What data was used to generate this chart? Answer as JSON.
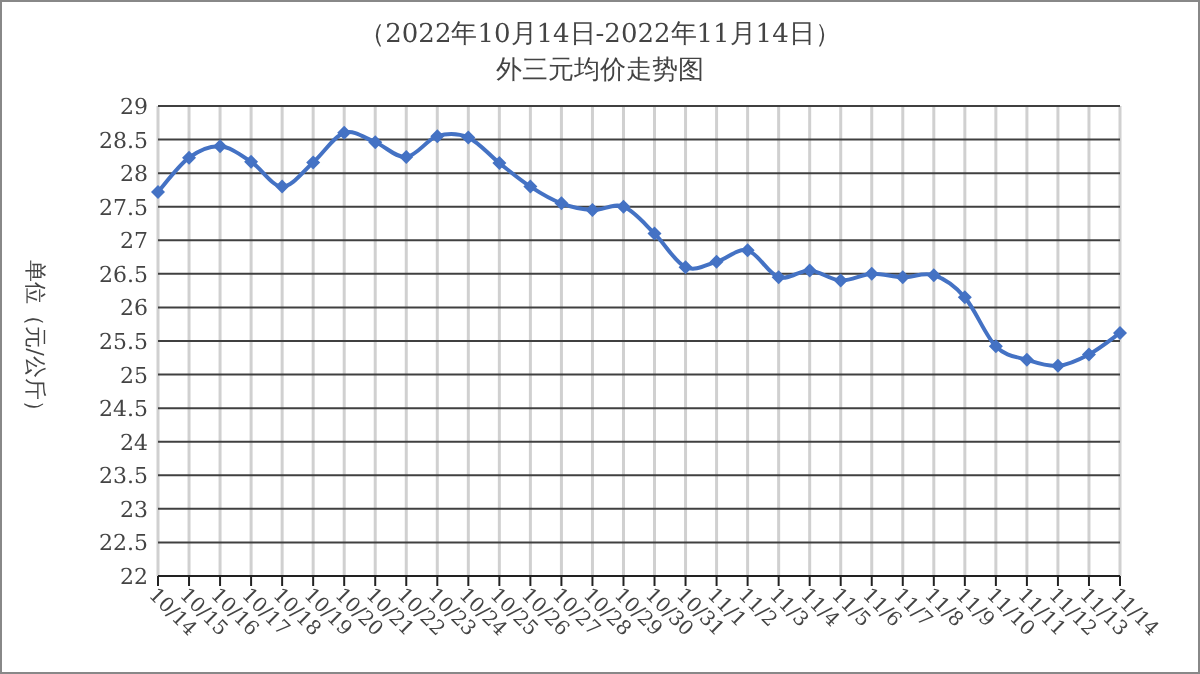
{
  "chart_data": {
    "type": "line",
    "title": "（2022年10月14日-2022年11月14日）",
    "subtitle": "外三元均价走势图",
    "ylabel": "单位（元/公斤）",
    "categories": [
      "10/14",
      "10/15",
      "10/16",
      "10/17",
      "10/18",
      "10/19",
      "10/20",
      "10/21",
      "10/22",
      "10/23",
      "10/24",
      "10/25",
      "10/26",
      "10/27",
      "10/28",
      "10/29",
      "10/30",
      "10/31",
      "11/1",
      "11/2",
      "11/3",
      "11/4",
      "11/5",
      "11/6",
      "11/7",
      "11/8",
      "11/9",
      "11/10",
      "11/11",
      "11/12",
      "11/13",
      "11/14"
    ],
    "series": [
      {
        "color": "#4472c4",
        "values": [
          27.72,
          28.23,
          28.4,
          28.17,
          27.8,
          28.16,
          28.6,
          28.46,
          28.24,
          28.55,
          28.53,
          28.15,
          27.8,
          27.55,
          27.45,
          27.5,
          27.1,
          26.6,
          26.68,
          26.85,
          26.45,
          26.55,
          26.4,
          26.5,
          26.45,
          26.48,
          26.15,
          25.42,
          25.22,
          25.13,
          25.3,
          25.62
        ]
      }
    ],
    "ylim": [
      22,
      29
    ],
    "yticks": [
      22,
      22.5,
      23,
      23.5,
      24,
      24.5,
      25,
      25.5,
      26,
      26.5,
      27,
      27.5,
      28,
      28.5,
      29
    ],
    "grid": true,
    "marker": "diamond",
    "line_style": "solid"
  }
}
